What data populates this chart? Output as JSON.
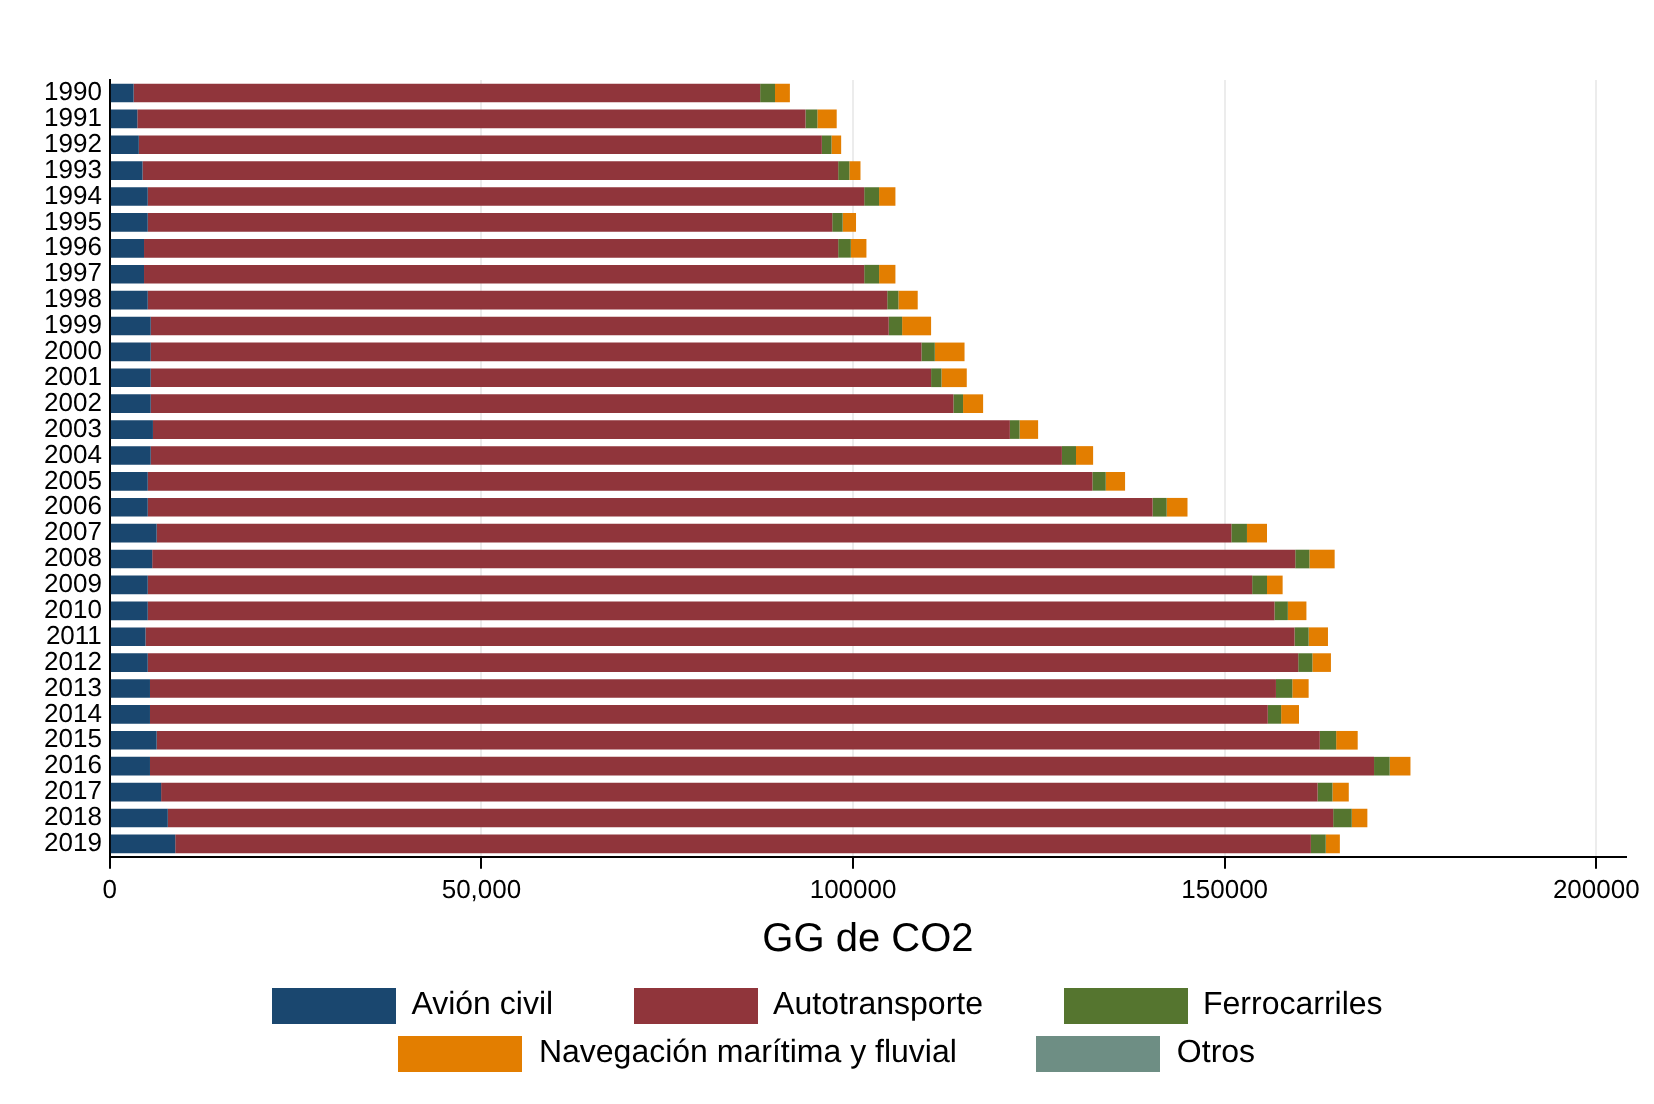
{
  "chart_data": {
    "type": "bar",
    "orientation": "horizontal",
    "stacked": true,
    "xlabel": "GG de CO2",
    "categories": [
      "1990",
      "1991",
      "1992",
      "1993",
      "1994",
      "1995",
      "1996",
      "1997",
      "1998",
      "1999",
      "2000",
      "2001",
      "2002",
      "2003",
      "2004",
      "2005",
      "2006",
      "2007",
      "2008",
      "2009",
      "2010",
      "2011",
      "2012",
      "2013",
      "2014",
      "2015",
      "2016",
      "2017",
      "2018",
      "2019"
    ],
    "series": [
      {
        "name": "Avión civil",
        "color": "#1a476f",
        "values": [
          3200,
          3700,
          3900,
          4400,
          5100,
          5100,
          4600,
          4600,
          5100,
          5500,
          5500,
          5500,
          5500,
          5800,
          5500,
          5100,
          5100,
          6300,
          5700,
          5100,
          5100,
          4800,
          5100,
          5400,
          5400,
          6300,
          5400,
          6900,
          7800,
          8800
        ]
      },
      {
        "name": "Autotransporte",
        "color": "#90353b",
        "values": [
          84300,
          89900,
          91900,
          93600,
          96400,
          92100,
          93400,
          96900,
          99500,
          99300,
          103700,
          105000,
          108000,
          115300,
          122600,
          127100,
          135200,
          144600,
          153800,
          148600,
          151600,
          154600,
          154800,
          151500,
          150400,
          156500,
          164700,
          155600,
          156800,
          152800
        ]
      },
      {
        "name": "Ferrocarriles",
        "color": "#55752f",
        "values": [
          2000,
          1600,
          1300,
          1500,
          2000,
          1400,
          1700,
          2000,
          1500,
          1800,
          1800,
          1400,
          1300,
          1300,
          1900,
          1800,
          1900,
          2100,
          1900,
          2000,
          1800,
          1900,
          1900,
          2200,
          1800,
          2200,
          2100,
          2000,
          2500,
          2000
        ]
      },
      {
        "name": "Navegación marítima y fluvial",
        "color": "#e37e00",
        "values": [
          2000,
          2600,
          1300,
          1500,
          2200,
          1800,
          2100,
          2200,
          2600,
          3900,
          4000,
          3400,
          2700,
          2500,
          2300,
          2600,
          2800,
          2700,
          3400,
          2100,
          2500,
          2600,
          2500,
          2200,
          2400,
          2900,
          2800,
          2200,
          2100,
          1900
        ]
      },
      {
        "name": "Otros",
        "color": "#6e8e84",
        "values": [
          0,
          0,
          0,
          0,
          0,
          0,
          0,
          0,
          0,
          0,
          0,
          0,
          0,
          0,
          0,
          0,
          0,
          0,
          0,
          0,
          0,
          0,
          0,
          0,
          0,
          0,
          0,
          0,
          0,
          0
        ]
      }
    ],
    "xlim": [
      0,
      204000
    ],
    "xticks": [
      0,
      {
        "value": 50000,
        "label": "50,000"
      },
      100000,
      150000,
      200000
    ],
    "grid": "x",
    "legend": "bottom"
  }
}
